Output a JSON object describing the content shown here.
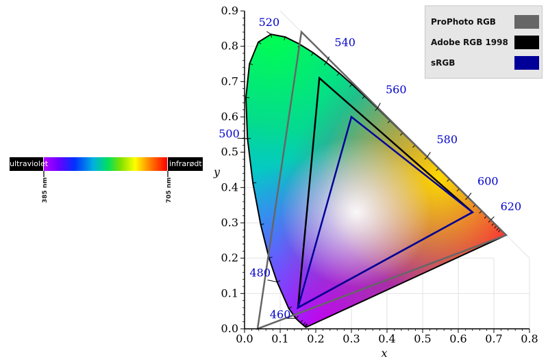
{
  "spectrum": {
    "left_label": "ultraviolet",
    "right_label": "infrarødt",
    "start_label": "385 nm",
    "end_label": "705 nm"
  },
  "legend": {
    "items": [
      {
        "label": "ProPhoto RGB",
        "color": "#666666"
      },
      {
        "label": "Adobe RGB 1998",
        "color": "#000000"
      },
      {
        "label": "sRGB",
        "color": "#000099"
      }
    ]
  },
  "chart_data": {
    "type": "scatter",
    "title": "",
    "xlabel": "x",
    "ylabel": "y",
    "xlim": [
      0.0,
      0.8
    ],
    "ylim": [
      0.0,
      0.9
    ],
    "x_ticks": [
      "0.0",
      "0.1",
      "0.2",
      "0.3",
      "0.4",
      "0.5",
      "0.6",
      "0.7",
      "0.8"
    ],
    "y_ticks": [
      "0.0",
      "0.1",
      "0.2",
      "0.3",
      "0.4",
      "0.5",
      "0.6",
      "0.7",
      "0.8",
      "0.9"
    ],
    "grid": true,
    "legend_position": "top-right",
    "spectral_locus": [
      [
        0.1741,
        0.005
      ],
      [
        0.1738,
        0.0049
      ],
      [
        0.1733,
        0.0048
      ],
      [
        0.1726,
        0.0048
      ],
      [
        0.1714,
        0.0051
      ],
      [
        0.1689,
        0.0069
      ],
      [
        0.1644,
        0.0109
      ],
      [
        0.1566,
        0.0177
      ],
      [
        0.144,
        0.0297
      ],
      [
        0.1241,
        0.0578
      ],
      [
        0.0913,
        0.1327
      ],
      [
        0.0687,
        0.2007
      ],
      [
        0.0454,
        0.295
      ],
      [
        0.0235,
        0.4127
      ],
      [
        0.0082,
        0.5384
      ],
      [
        0.0039,
        0.6548
      ],
      [
        0.0139,
        0.7502
      ],
      [
        0.0389,
        0.812
      ],
      [
        0.0743,
        0.8338
      ],
      [
        0.1142,
        0.8262
      ],
      [
        0.1547,
        0.8059
      ],
      [
        0.1929,
        0.7816
      ],
      [
        0.2296,
        0.7543
      ],
      [
        0.2658,
        0.7243
      ],
      [
        0.3016,
        0.6923
      ],
      [
        0.3373,
        0.6589
      ],
      [
        0.3731,
        0.6245
      ],
      [
        0.4087,
        0.5896
      ],
      [
        0.4441,
        0.5547
      ],
      [
        0.4788,
        0.5202
      ],
      [
        0.5125,
        0.4866
      ],
      [
        0.5448,
        0.4544
      ],
      [
        0.5752,
        0.4242
      ],
      [
        0.6029,
        0.3965
      ],
      [
        0.627,
        0.3725
      ],
      [
        0.6482,
        0.3514
      ],
      [
        0.6658,
        0.334
      ],
      [
        0.6801,
        0.3197
      ],
      [
        0.6915,
        0.3083
      ],
      [
        0.7006,
        0.2993
      ],
      [
        0.7079,
        0.292
      ],
      [
        0.714,
        0.2859
      ],
      [
        0.719,
        0.2809
      ],
      [
        0.723,
        0.277
      ],
      [
        0.726,
        0.274
      ],
      [
        0.7283,
        0.2717
      ],
      [
        0.73,
        0.27
      ],
      [
        0.7311,
        0.2689
      ],
      [
        0.732,
        0.268
      ],
      [
        0.7327,
        0.2673
      ],
      [
        0.7334,
        0.2666
      ],
      [
        0.734,
        0.266
      ],
      [
        0.7344,
        0.2656
      ],
      [
        0.7346,
        0.2654
      ],
      [
        0.7347,
        0.2653
      ]
    ],
    "wavelength_labels": [
      {
        "label": "460",
        "x": 0.144,
        "y": 0.0297
      },
      {
        "label": "480",
        "x": 0.0913,
        "y": 0.1327
      },
      {
        "label": "500",
        "x": 0.0082,
        "y": 0.5384
      },
      {
        "label": "520",
        "x": 0.0743,
        "y": 0.8338
      },
      {
        "label": "540",
        "x": 0.2296,
        "y": 0.7543
      },
      {
        "label": "560",
        "x": 0.3731,
        "y": 0.6245
      },
      {
        "label": "580",
        "x": 0.5125,
        "y": 0.4866
      },
      {
        "label": "600",
        "x": 0.627,
        "y": 0.3725
      },
      {
        "label": "620",
        "x": 0.6915,
        "y": 0.3083
      }
    ],
    "series": [
      {
        "name": "ProPhoto RGB",
        "color": "#666666",
        "points": [
          [
            0.7347,
            0.2653
          ],
          [
            0.1596,
            0.8404
          ],
          [
            0.0366,
            0.0001
          ]
        ]
      },
      {
        "name": "Adobe RGB 1998",
        "color": "#000000",
        "points": [
          [
            0.64,
            0.33
          ],
          [
            0.21,
            0.71
          ],
          [
            0.15,
            0.06
          ]
        ]
      },
      {
        "name": "sRGB",
        "color": "#000099",
        "points": [
          [
            0.64,
            0.33
          ],
          [
            0.3,
            0.6
          ],
          [
            0.15,
            0.06
          ]
        ]
      }
    ]
  }
}
